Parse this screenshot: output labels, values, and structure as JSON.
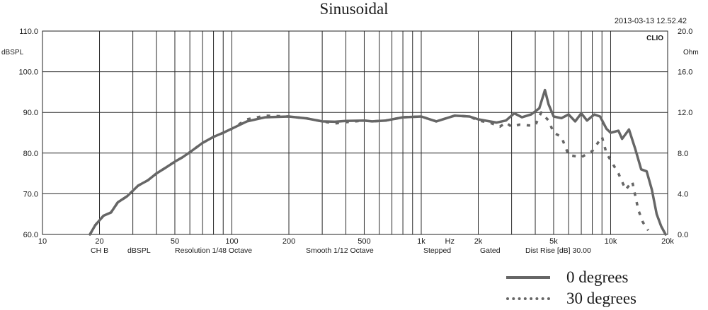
{
  "chart_data": {
    "type": "line",
    "title": "Sinusoidal",
    "timestamp": "2013-03-13 12.52.42",
    "brand": "CLIO",
    "x_scale": "log",
    "xlim": [
      10,
      20000
    ],
    "x_ticks": [
      {
        "value": 10,
        "label": "10"
      },
      {
        "value": 20,
        "label": "20"
      },
      {
        "value": 50,
        "label": "50"
      },
      {
        "value": 100,
        "label": "100"
      },
      {
        "value": 200,
        "label": "200"
      },
      {
        "value": 500,
        "label": "500"
      },
      {
        "value": 1000,
        "label": "1k"
      },
      {
        "value": 1414,
        "label": "Hz"
      },
      {
        "value": 2000,
        "label": "2k"
      },
      {
        "value": 5000,
        "label": "5k"
      },
      {
        "value": 10000,
        "label": "10k"
      },
      {
        "value": 20000,
        "label": "20k"
      }
    ],
    "x_grid": [
      20,
      30,
      40,
      50,
      60,
      70,
      80,
      90,
      100,
      200,
      300,
      400,
      500,
      600,
      700,
      800,
      900,
      1000,
      2000,
      3000,
      4000,
      5000,
      6000,
      7000,
      8000,
      9000,
      10000,
      20000
    ],
    "ylim": [
      60,
      110
    ],
    "y_ticks": [
      "60.0",
      "70.0",
      "80.0",
      "90.0",
      "100.0",
      "110.0"
    ],
    "ylabel": "dBSPL",
    "y2lim": [
      0,
      20
    ],
    "y2_ticks": [
      "0.0",
      "4.0",
      "8.0",
      "12.0",
      "16.0",
      "20.0"
    ],
    "y2label": "Ohm",
    "footer": [
      "CH B",
      "dBSPL",
      "Resolution 1/48 Octave",
      "Smooth 1/12 Octave",
      "Stepped",
      "Gated",
      "Dist Rise [dB] 30.00"
    ],
    "grid": true,
    "legend_position": "bottom-right",
    "series": [
      {
        "name": "0 degrees",
        "style": "solid",
        "color": "#666666",
        "points": [
          [
            17.8,
            60.0
          ],
          [
            19,
            62.3
          ],
          [
            21,
            64.6
          ],
          [
            23,
            65.4
          ],
          [
            25,
            67.9
          ],
          [
            28,
            69.4
          ],
          [
            32,
            72.0
          ],
          [
            36,
            73.3
          ],
          [
            40,
            75.0
          ],
          [
            45,
            76.5
          ],
          [
            50,
            77.9
          ],
          [
            55,
            79.0
          ],
          [
            60,
            80.2
          ],
          [
            70,
            82.5
          ],
          [
            80,
            84.0
          ],
          [
            90,
            85.0
          ],
          [
            100,
            86.0
          ],
          [
            120,
            87.8
          ],
          [
            150,
            88.8
          ],
          [
            200,
            89.0
          ],
          [
            250,
            88.5
          ],
          [
            300,
            87.8
          ],
          [
            350,
            87.7
          ],
          [
            400,
            87.9
          ],
          [
            500,
            88.0
          ],
          [
            550,
            87.8
          ],
          [
            650,
            88.0
          ],
          [
            800,
            88.8
          ],
          [
            1000,
            89.0
          ],
          [
            1200,
            87.8
          ],
          [
            1500,
            89.2
          ],
          [
            1800,
            89.0
          ],
          [
            2000,
            88.3
          ],
          [
            2500,
            87.5
          ],
          [
            2800,
            88.0
          ],
          [
            3100,
            89.8
          ],
          [
            3400,
            88.8
          ],
          [
            3800,
            89.5
          ],
          [
            4200,
            91.0
          ],
          [
            4500,
            95.5
          ],
          [
            4700,
            92.0
          ],
          [
            5000,
            89.0
          ],
          [
            5500,
            88.6
          ],
          [
            6000,
            89.5
          ],
          [
            6500,
            87.8
          ],
          [
            7000,
            89.8
          ],
          [
            7500,
            88.0
          ],
          [
            8200,
            89.5
          ],
          [
            8800,
            89.0
          ],
          [
            9500,
            86.0
          ],
          [
            10000,
            85.0
          ],
          [
            11000,
            85.5
          ],
          [
            11500,
            83.5
          ],
          [
            12500,
            85.8
          ],
          [
            13500,
            81.0
          ],
          [
            14500,
            76.0
          ],
          [
            15500,
            75.5
          ],
          [
            16500,
            71.0
          ],
          [
            17500,
            65.0
          ],
          [
            18500,
            62.0
          ],
          [
            19500,
            60.0
          ]
        ]
      },
      {
        "name": "30 degrees",
        "style": "dotted",
        "color": "#666666",
        "points": [
          [
            17.8,
            60.0
          ],
          [
            19,
            62.3
          ],
          [
            21,
            64.6
          ],
          [
            23,
            65.4
          ],
          [
            25,
            67.9
          ],
          [
            28,
            69.4
          ],
          [
            32,
            72.0
          ],
          [
            36,
            73.3
          ],
          [
            40,
            75.0
          ],
          [
            45,
            76.5
          ],
          [
            50,
            77.9
          ],
          [
            55,
            79.0
          ],
          [
            60,
            80.2
          ],
          [
            70,
            82.5
          ],
          [
            80,
            84.0
          ],
          [
            90,
            85.0
          ],
          [
            100,
            86.0
          ],
          [
            120,
            88.3
          ],
          [
            150,
            89.2
          ],
          [
            200,
            89.0
          ],
          [
            250,
            88.5
          ],
          [
            300,
            87.8
          ],
          [
            350,
            87.3
          ],
          [
            400,
            87.6
          ],
          [
            500,
            88.0
          ],
          [
            550,
            87.8
          ],
          [
            650,
            88.0
          ],
          [
            800,
            88.8
          ],
          [
            1000,
            89.0
          ],
          [
            1200,
            87.8
          ],
          [
            1500,
            89.2
          ],
          [
            1800,
            89.0
          ],
          [
            2000,
            88.0
          ],
          [
            2300,
            87.5
          ],
          [
            2600,
            86.5
          ],
          [
            2800,
            87.5
          ],
          [
            3000,
            86.5
          ],
          [
            3300,
            87.0
          ],
          [
            3700,
            86.8
          ],
          [
            4000,
            86.8
          ],
          [
            4300,
            90.0
          ],
          [
            4700,
            88.0
          ],
          [
            5000,
            85.0
          ],
          [
            5500,
            84.0
          ],
          [
            6000,
            79.5
          ],
          [
            7000,
            79.0
          ],
          [
            8000,
            80.5
          ],
          [
            9000,
            84.0
          ],
          [
            9500,
            80.0
          ],
          [
            11000,
            75.0
          ],
          [
            12000,
            71.0
          ],
          [
            13000,
            73.0
          ],
          [
            14000,
            66.0
          ],
          [
            14800,
            63.0
          ],
          [
            15800,
            61.0
          ]
        ]
      }
    ]
  }
}
